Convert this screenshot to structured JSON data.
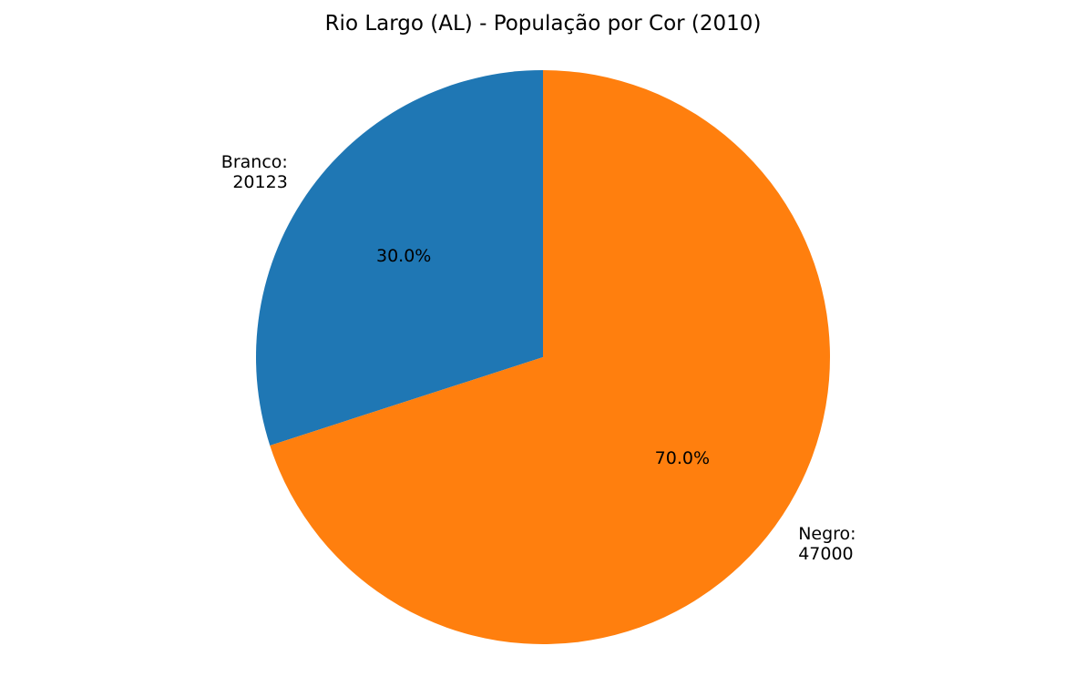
{
  "chart_data": {
    "type": "pie",
    "title": "Rio Largo (AL) - População por Cor (2010)",
    "start_angle_deg": 90,
    "direction": "counterclockwise",
    "slices": [
      {
        "category": "Branco",
        "value": 20123,
        "percent_label": "30.0%",
        "label_lines": [
          "Branco:",
          "20123"
        ],
        "color": "#1f77b4"
      },
      {
        "category": "Negro",
        "value": 47000,
        "percent_label": "70.0%",
        "label_lines": [
          "Negro:",
          "47000"
        ],
        "color": "#ff7f0e"
      }
    ]
  }
}
